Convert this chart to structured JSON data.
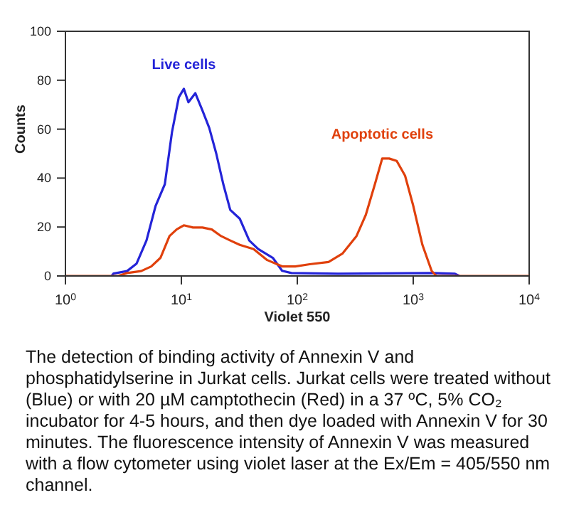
{
  "chart_data": {
    "type": "line",
    "xlabel": "Violet 550",
    "ylabel": "Counts",
    "log": "x",
    "xlim": [
      1,
      10000
    ],
    "xticks": [
      {
        "value": 1,
        "label": "10$^{0}$"
      },
      {
        "value": 10,
        "label": "10$^{1}$"
      },
      {
        "value": 100,
        "label": "10$^{2}$"
      },
      {
        "value": 1000,
        "label": "10$^{3}$"
      },
      {
        "value": 10000,
        "label": "10$^{4}$"
      }
    ],
    "ylim": [
      0,
      100
    ],
    "yticks": [
      0,
      20,
      40,
      60,
      80,
      100
    ],
    "marker": "none",
    "line_style": "solid",
    "series": [
      {
        "name": "Live cells",
        "color": "#2424d8",
        "x": [
          2.5,
          2.6,
          3.4,
          4.1,
          5.0,
          6.0,
          7.2,
          8.3,
          9.5,
          10.5,
          11.5,
          13.2,
          15.2,
          17.4,
          20,
          23,
          26.4,
          31.9,
          38.5,
          46,
          61.5,
          74,
          89,
          224,
          1440,
          2290,
          2500
        ],
        "values": [
          0,
          1,
          2,
          5,
          14.5,
          28.7,
          37.5,
          58.8,
          73,
          76.5,
          71,
          74.7,
          67.6,
          60.5,
          50,
          37.5,
          27,
          23.4,
          14.5,
          11,
          7.4,
          2.1,
          1.2,
          0.9,
          1.2,
          0.9,
          0
        ]
      },
      {
        "name": "Apoptotic cells",
        "color": "#e0400c",
        "x": [
          1,
          2.86,
          3.4,
          4.5,
          5.5,
          6.6,
          7.9,
          9.1,
          10.5,
          12.6,
          15.2,
          18.3,
          22,
          26.4,
          31.9,
          42,
          55,
          74,
          96,
          128,
          186,
          246,
          324,
          390,
          467,
          540,
          620,
          720,
          850,
          1000,
          1200,
          1440,
          1580,
          10000
        ],
        "values": [
          0,
          0,
          1.2,
          2,
          3.9,
          7.4,
          16.3,
          19,
          20.7,
          19.8,
          19.8,
          19,
          16.3,
          14.5,
          12.7,
          11,
          6.5,
          3.9,
          3.9,
          4.8,
          5.7,
          9.2,
          16.3,
          25,
          37.5,
          48,
          48,
          47,
          41,
          28.7,
          12.7,
          2.1,
          0,
          0
        ]
      }
    ],
    "annotations": [
      "The detection of binding activity of Annexin V and phosphatidylserine in Jurkat cells. Jurkat cells were treated without (Blue) or with 20 µM camptothecin (Red) in a 37 ºC, 5% CO₂ incubator for 4-5 hours, and then dye loaded with Annexin V for 30 minutes. The fluorescence intensity of Annexin V was measured with a flow cytometer using violet laser at the Ex/Em = 405/550 nm channel."
    ]
  }
}
